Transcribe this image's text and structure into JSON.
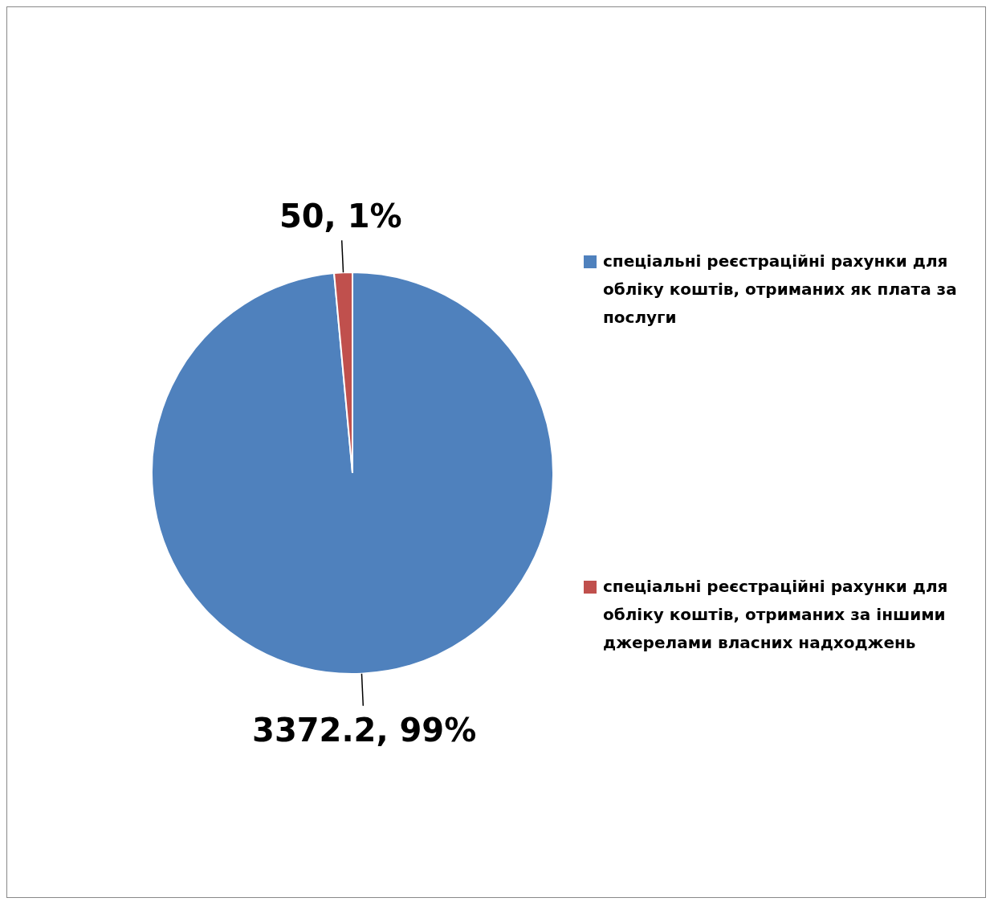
{
  "chart_data": {
    "type": "pie",
    "categories": [
      "спеціальні реєстраційні рахунки для обліку коштів, отриманих як плата за послуги",
      "спеціальні реєстраційні рахунки для обліку коштів, отриманих за іншими джерелами власних надходжень"
    ],
    "values": [
      3372.2,
      50
    ],
    "colors": [
      "#4f81bd",
      "#c0504d"
    ],
    "value_labels": [
      "3372.2, 99%",
      "50, 1%"
    ],
    "legend": "right"
  }
}
